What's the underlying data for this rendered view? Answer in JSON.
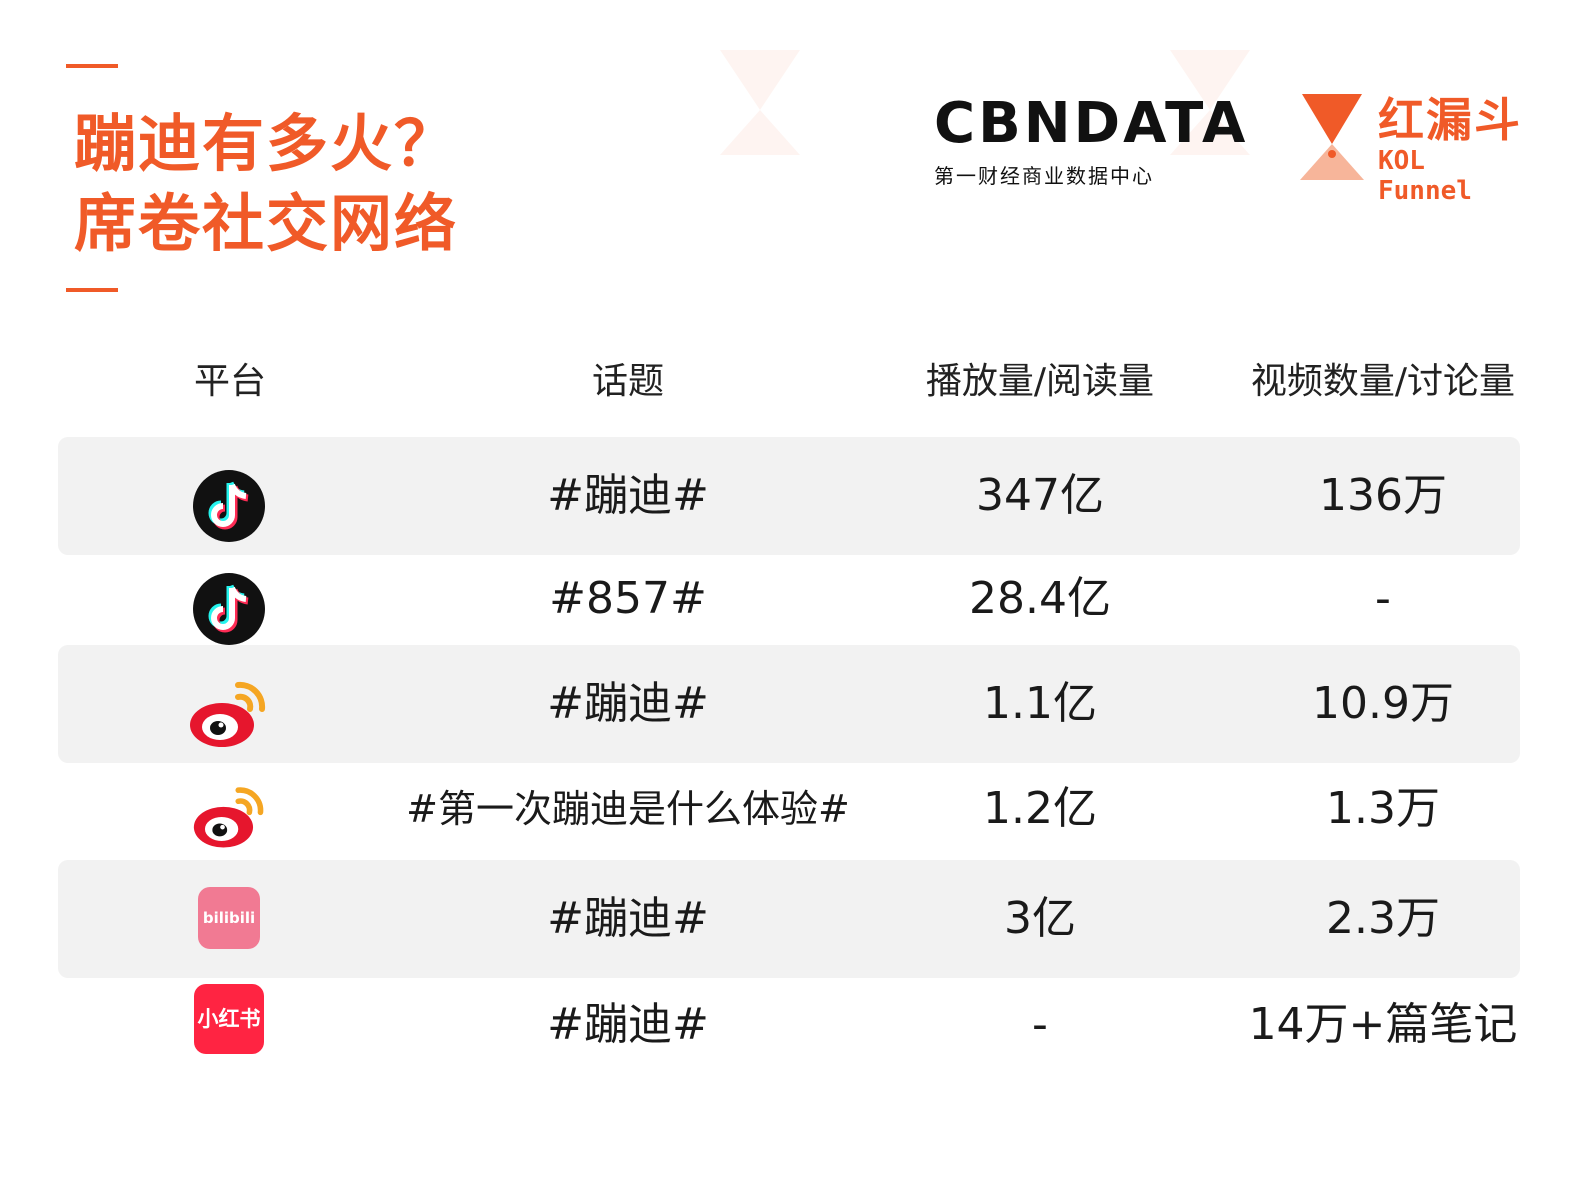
{
  "title": {
    "line1": "蹦迪有多火？",
    "line2": "席卷社交网络"
  },
  "logos": {
    "cbn_word": "CBNDATA",
    "cbn_sub": "第一财经商业数据中心",
    "kol_cn": "红漏斗",
    "kol_en": "KOL Funnel"
  },
  "table": {
    "headers": [
      "平台",
      "话题",
      "播放量/阅读量",
      "视频数量/讨论量"
    ],
    "rows": [
      {
        "platform_icon": "douyin-icon",
        "topic": "#蹦迪#",
        "plays": "347亿",
        "count": "136万"
      },
      {
        "platform_icon": "douyin-icon",
        "topic": "#857#",
        "plays": "28.4亿",
        "count": "-"
      },
      {
        "platform_icon": "weibo-icon",
        "topic": "#蹦迪#",
        "plays": "1.1亿",
        "count": "10.9万"
      },
      {
        "platform_icon": "weibo-icon",
        "topic": "#第一次蹦迪是什么体验#",
        "plays": "1.2亿",
        "count": "1.3万"
      },
      {
        "platform_icon": "bilibili-icon",
        "topic": "#蹦迪#",
        "plays": "3亿",
        "count": "2.3万"
      },
      {
        "platform_icon": "xiaohongshu-icon",
        "topic": "#蹦迪#",
        "plays": "-",
        "count": "14万+篇笔记"
      }
    ]
  },
  "icon_text": {
    "bilibili": "bilibili",
    "xiaohongshu": "小红书"
  },
  "colors": {
    "accent": "#f05a28",
    "row_shade": "#f2f2f2",
    "douyin_bg": "#111111",
    "weibo_red": "#e6162d",
    "weibo_orange": "#f5a623",
    "bilibili_pink": "#f17a93",
    "xhs_red": "#ff2442"
  }
}
